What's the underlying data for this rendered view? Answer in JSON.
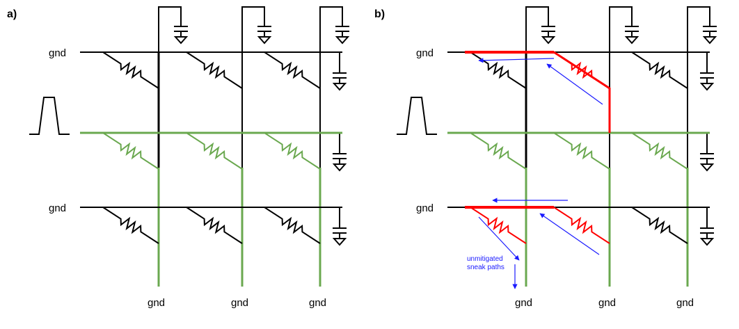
{
  "panels": [
    {
      "label": "a)",
      "highlight_sneak_paths": false
    },
    {
      "label": "b)",
      "highlight_sneak_paths": true
    }
  ],
  "labels": {
    "ground": "gnd"
  },
  "annotation": {
    "line1": "unmitigated",
    "line2": "sneak paths"
  },
  "colors": {
    "wire": "#000000",
    "driven": "#6aa84f",
    "sneak": "#ff0000",
    "current_arrow": "#1a1aff"
  }
}
